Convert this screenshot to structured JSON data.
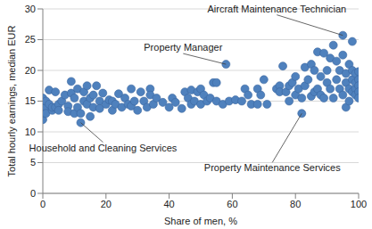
{
  "chart_data": {
    "type": "scatter",
    "x_label": "Share of men, %",
    "y_label": "Total hourly earnings, median EUR",
    "color": "#4f81bd",
    "marker": "circle",
    "grid": true,
    "xlim": [
      0,
      100
    ],
    "xticks": [
      0,
      20,
      40,
      60,
      80,
      100
    ],
    "ylim": [
      0,
      30
    ],
    "yticks": [
      0,
      5,
      10,
      15,
      20,
      25,
      30
    ],
    "x": [
      0,
      0,
      0,
      0,
      0,
      0,
      0.5,
      1,
      1,
      1,
      2,
      2,
      3,
      3,
      4,
      4,
      5,
      5,
      6,
      7,
      8,
      8,
      9,
      9,
      10,
      10,
      11,
      11,
      12,
      12,
      13,
      13,
      14,
      14,
      15,
      15,
      16,
      16,
      17,
      18,
      18,
      19,
      20,
      21,
      22,
      22,
      23,
      24,
      25,
      26,
      27,
      28,
      28,
      29,
      30,
      31,
      32,
      33,
      34,
      34,
      35,
      36,
      38,
      40,
      41,
      42,
      44,
      45,
      46,
      47,
      47,
      48,
      49,
      50,
      50,
      51,
      52,
      53,
      54,
      55,
      55,
      57,
      58,
      59,
      61,
      63,
      64,
      65,
      66,
      68,
      68,
      69,
      70,
      71,
      74,
      75,
      75,
      76,
      77,
      78,
      78,
      79,
      80,
      80,
      81,
      82,
      82,
      83,
      83,
      84,
      85,
      85,
      86,
      86,
      87,
      87,
      88,
      88,
      89,
      89,
      90,
      90,
      91,
      91,
      92,
      92,
      93,
      93,
      94,
      94,
      95,
      95,
      95,
      96,
      96,
      96,
      97,
      97,
      97,
      98,
      98,
      98,
      98,
      99,
      99,
      99,
      99,
      100,
      100,
      100,
      100,
      100
    ],
    "values": [
      12,
      13,
      14,
      14.5,
      15,
      15.5,
      13.5,
      14,
      15,
      13,
      14.5,
      16.8,
      13.5,
      14,
      14,
      16.5,
      14.5,
      13.5,
      15,
      16,
      14.2,
      13.3,
      16.3,
      18.2,
      13,
      15.5,
      14,
      17,
      11.5,
      13,
      15,
      16.5,
      14.5,
      17.5,
      15.5,
      12.5,
      16,
      14,
      17.5,
      15,
      13.8,
      16.3,
      14.5,
      15.2,
      15,
      13.5,
      14.5,
      16.2,
      14,
      15.5,
      14.5,
      17,
      14.2,
      15,
      13.5,
      16.5,
      15,
      14,
      17,
      16,
      14.5,
      15.5,
      14.8,
      14,
      15.5,
      14.8,
      13.8,
      16.5,
      15.5,
      14.5,
      16.8,
      15,
      16.5,
      17,
      14.5,
      16,
      15,
      15.5,
      18,
      18,
      15,
      14.5,
      21,
      15,
      15.2,
      15,
      17,
      16,
      14.5,
      17,
      14.5,
      16,
      18.5,
      14.5,
      17,
      17.5,
      16.5,
      20.7,
      16.5,
      15,
      17.5,
      18,
      16,
      19,
      17,
      15.5,
      13,
      17.5,
      20.5,
      18.5,
      21,
      15.8,
      20,
      16.5,
      17,
      23,
      16,
      19,
      22.8,
      15.5,
      18,
      20,
      22,
      17,
      24.1,
      15.5,
      18.5,
      21.5,
      17,
      20,
      25.7,
      22.5,
      16,
      18,
      19.5,
      14,
      21,
      17,
      15,
      18.5,
      20,
      16.5,
      24.7,
      17,
      19.5,
      18,
      16,
      18.5,
      19.8,
      17.5,
      16.5,
      15.5
    ],
    "annotations": [
      {
        "text": "Aircraft Maintenance Technician",
        "x": 95,
        "y": 25.7
      },
      {
        "text": "Property Manager",
        "x": 58,
        "y": 21
      },
      {
        "text": "Household and Cleaning Services",
        "x": 12,
        "y": 11.5
      },
      {
        "text": "Property Maintenance Services",
        "x": 82,
        "y": 13
      }
    ]
  }
}
